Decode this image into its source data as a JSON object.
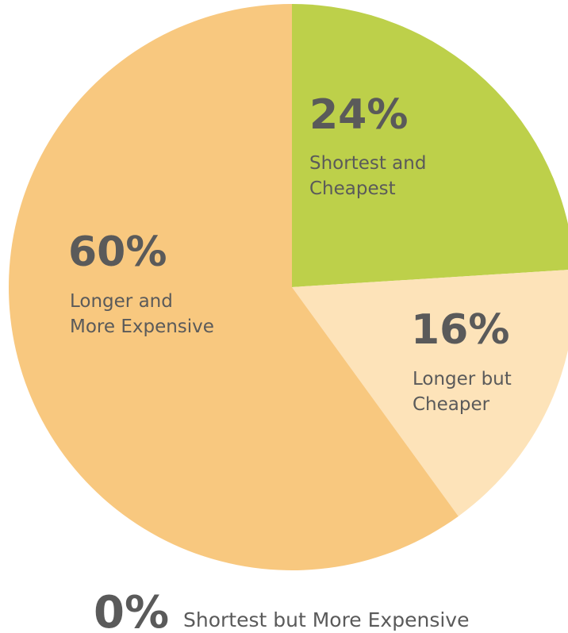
{
  "chart_data": {
    "type": "pie",
    "start_angle_deg": 0,
    "direction": "clockwise",
    "slices": [
      {
        "value": 24,
        "percent_label": "24%",
        "label_lines": [
          "Shortest and",
          "Cheapest"
        ],
        "color": "#bdd04a"
      },
      {
        "value": 16,
        "percent_label": "16%",
        "label_lines": [
          "Longer but",
          "Cheaper"
        ],
        "color": "#fde3b9"
      },
      {
        "value": 60,
        "percent_label": "60%",
        "label_lines": [
          "Longer and",
          "More Expensive"
        ],
        "color": "#f8c87f"
      },
      {
        "value": 0,
        "percent_label": "0%",
        "label_lines": [
          "Shortest but More Expensive"
        ],
        "color": "#f8c87f"
      }
    ]
  }
}
